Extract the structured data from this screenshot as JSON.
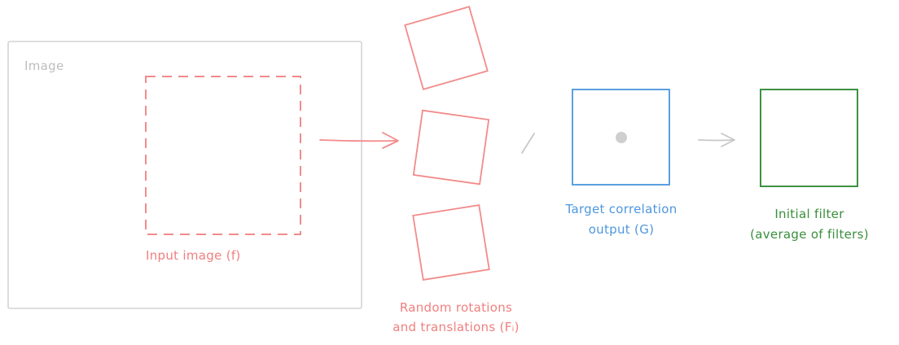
{
  "colors": {
    "frame": "#d4d4d4",
    "frame_label": "#bdbdbd",
    "red": "#f28b8b",
    "red_text": "#f07f7f",
    "blue": "#5b9fe0",
    "blue_text": "#4f97dd",
    "green": "#3e9140",
    "green_text": "#3a8f3c",
    "gray": "#c8c8c8",
    "dot": "#cfcfcf"
  },
  "labels": {
    "image_frame": "Image",
    "input_image": "Input image (f)",
    "random_line1": "Random rotations",
    "random_line2": "and translations (Fᵢ)",
    "target_line1": "Target correlation",
    "target_line2": "output (G)",
    "filter_line1": "Initial filter",
    "filter_line2": "(average of filters)"
  }
}
